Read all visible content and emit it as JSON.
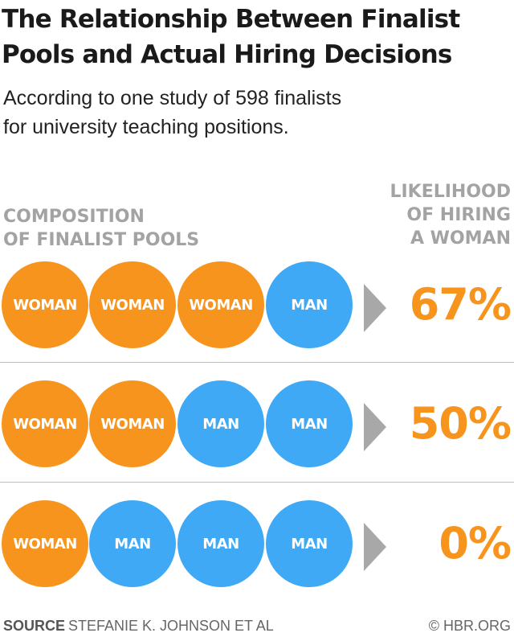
{
  "title_lines": [
    "The Relationship Between Finalist",
    "Pools and Actual Hiring Decisions"
  ],
  "subtitle_lines": [
    "According to one study of 598 finalists",
    "for university teaching positions."
  ],
  "left_header_lines": [
    "COMPOSITION",
    "OF FINALIST POOLS"
  ],
  "right_header_lines": [
    "LIKELIHOOD",
    "OF HIRING",
    "A WOMAN"
  ],
  "colors": {
    "woman": "#f7941d",
    "man": "#3fa9f5",
    "arrow": "#a8a8a8",
    "header": "#a3a3a3"
  },
  "chart_data": {
    "type": "table",
    "title": "The Relationship Between Finalist Pools and Actual Hiring Decisions",
    "subtitle": "According to one study of 598 finalists for university teaching positions.",
    "columns": [
      "COMPOSITION OF FINALIST POOLS",
      "LIKELIHOOD OF HIRING A WOMAN"
    ],
    "rows": [
      {
        "pool": [
          "WOMAN",
          "WOMAN",
          "WOMAN",
          "MAN"
        ],
        "likelihood": 67,
        "label": "67%"
      },
      {
        "pool": [
          "WOMAN",
          "WOMAN",
          "MAN",
          "MAN"
        ],
        "likelihood": 50,
        "label": "50%"
      },
      {
        "pool": [
          "WOMAN",
          "MAN",
          "MAN",
          "MAN"
        ],
        "likelihood": 0,
        "label": "0%"
      }
    ]
  },
  "footer": {
    "source_label": "SOURCE",
    "source_text": "STEFANIE K. JOHNSON ET AL",
    "credit": "© HBR.ORG"
  }
}
